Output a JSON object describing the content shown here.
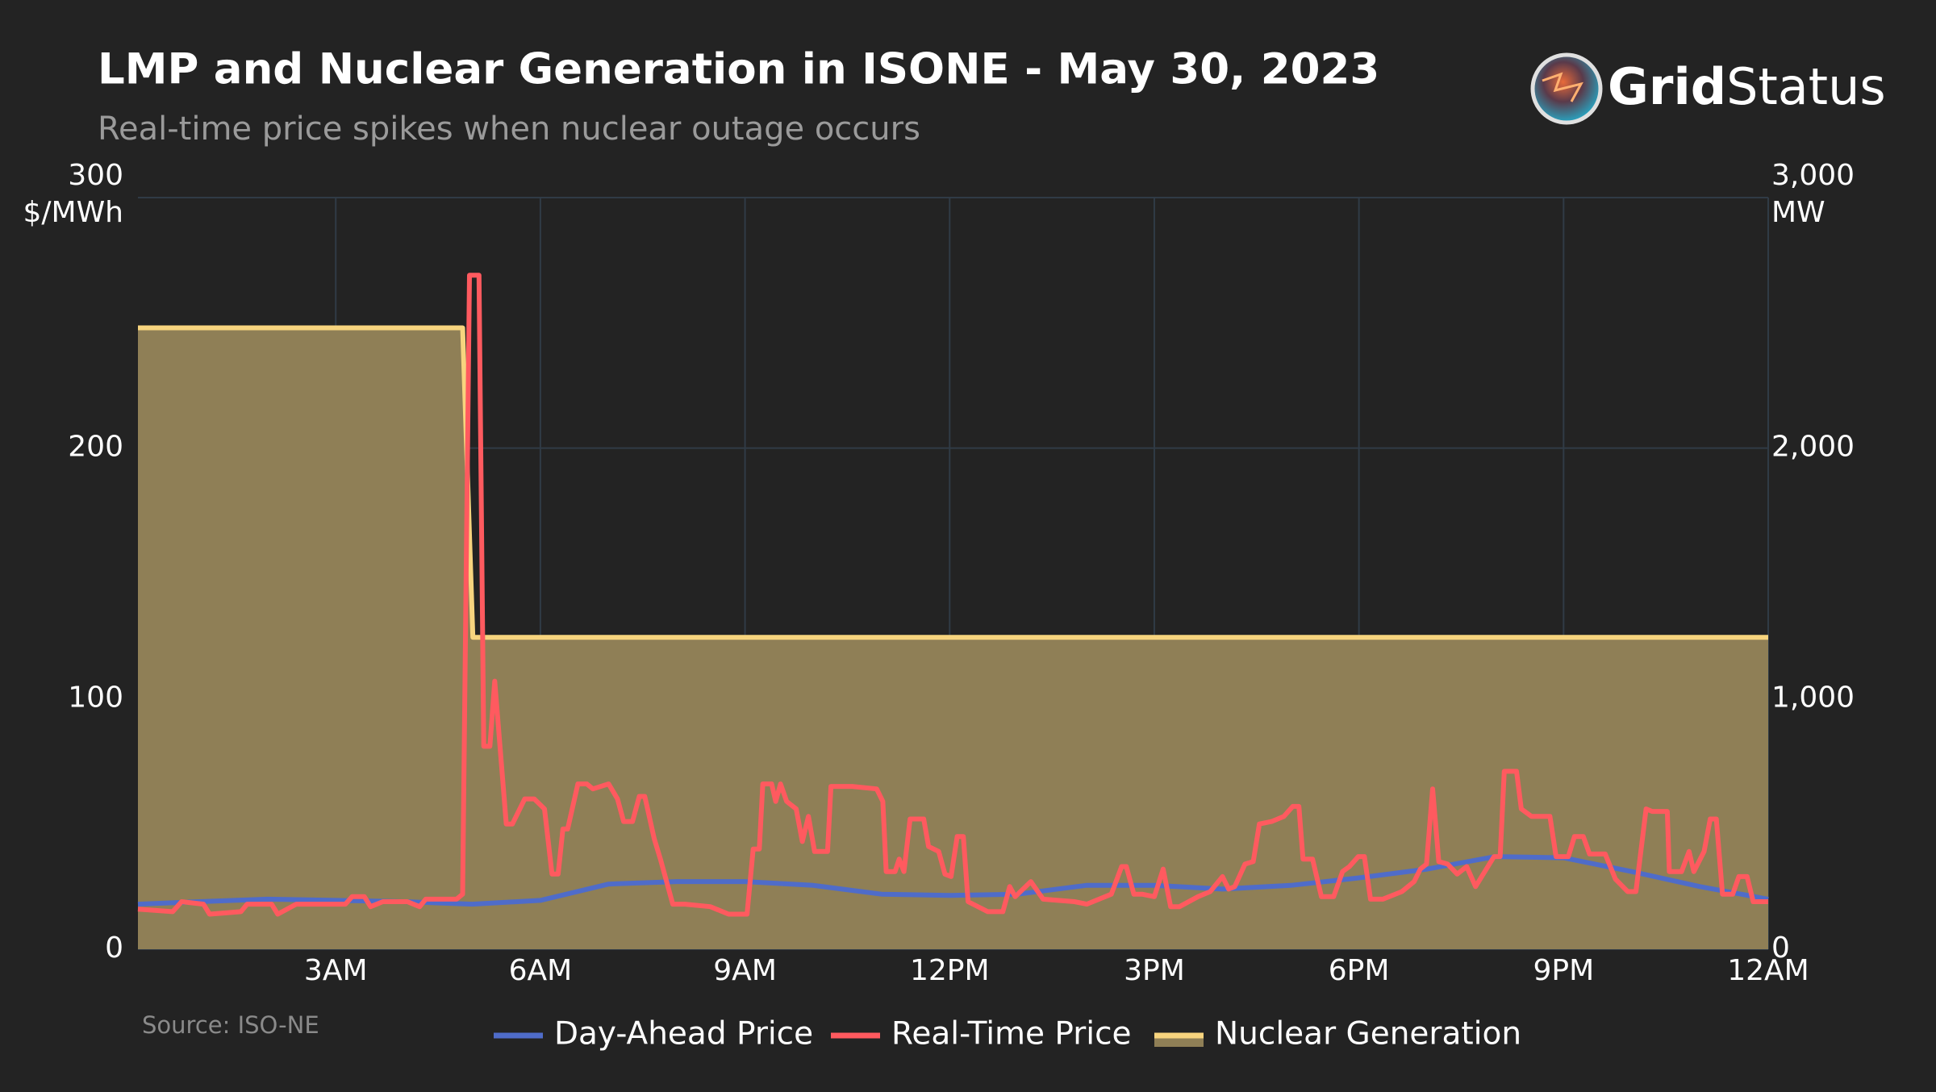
{
  "chart_data": {
    "type": "line",
    "title": "LMP and Nuclear Generation in ISONE - May 30, 2023",
    "subtitle": "Real-time price spikes when nuclear outage occurs",
    "source": "Source: ISO-NE",
    "branding": {
      "bold": "Grid",
      "regular": "Status"
    },
    "yaxis_title": "$/MWh",
    "y2axis_title": "MW",
    "xlim": [
      0.1,
      24
    ],
    "xticks": [
      {
        "value": 3,
        "label": "3AM"
      },
      {
        "value": 6,
        "label": "6AM"
      },
      {
        "value": 9,
        "label": "9AM"
      },
      {
        "value": 12,
        "label": "12PM"
      },
      {
        "value": 15,
        "label": "3PM"
      },
      {
        "value": 18,
        "label": "6PM"
      },
      {
        "value": 21,
        "label": "9PM"
      },
      {
        "value": 24,
        "label": "12AM"
      }
    ],
    "ylim": [
      0,
      300
    ],
    "yticks": [
      0,
      100,
      200,
      300
    ],
    "y2lim": [
      0,
      3000
    ],
    "y2ticks": [
      0,
      {
        "value": 1000,
        "label": "1,000"
      },
      {
        "value": 2000,
        "label": "2,000"
      },
      {
        "value": 3000,
        "label": "3,000"
      }
    ],
    "grid": true,
    "series": [
      {
        "name": "Day-Ahead Price",
        "color": "#4f6cc9",
        "x": [
          0.1,
          1,
          2,
          3,
          4,
          5,
          6,
          7,
          8,
          9,
          10,
          11,
          12,
          13,
          14,
          15,
          16,
          17,
          18,
          19,
          20,
          21,
          22,
          23,
          24
        ],
        "values": [
          18,
          19,
          20,
          19.5,
          19,
          18,
          19.5,
          26,
          27,
          27,
          25.5,
          22,
          21.5,
          22,
          25.5,
          25.5,
          24,
          25.5,
          28.5,
          32,
          37,
          36.5,
          31,
          25,
          20
        ]
      },
      {
        "name": "Real-Time Price",
        "color": "#ff5a5f",
        "x": [
          0.1,
          0.61,
          0.74,
          1.06,
          1.15,
          1.61,
          1.7,
          2.06,
          2.15,
          2.42,
          3.14,
          3.24,
          3.42,
          3.51,
          3.69,
          4.05,
          4.23,
          4.32,
          4.77,
          4.86,
          4.96,
          5.1,
          5.17,
          5.26,
          5.33,
          5.5,
          5.59,
          5.77,
          5.91,
          6.06,
          6.17,
          6.26,
          6.33,
          6.4,
          6.55,
          6.68,
          6.77,
          7.0,
          7.13,
          7.22,
          7.35,
          7.45,
          7.53,
          7.67,
          7.76,
          7.94,
          8.12,
          8.49,
          8.76,
          9.03,
          9.12,
          9.21,
          9.26,
          9.39,
          9.45,
          9.52,
          9.61,
          9.75,
          9.84,
          9.93,
          10.02,
          10.21,
          10.26,
          10.57,
          10.93,
          11.02,
          11.07,
          11.2,
          11.26,
          11.33,
          11.42,
          11.62,
          11.69,
          11.84,
          11.93,
          12.02,
          12.11,
          12.2,
          12.27,
          12.56,
          12.78,
          12.88,
          12.96,
          13.19,
          13.37,
          13.83,
          14.01,
          14.37,
          14.52,
          14.59,
          14.7,
          14.82,
          15.0,
          15.13,
          15.24,
          15.37,
          15.64,
          15.82,
          16.0,
          16.09,
          16.18,
          16.33,
          16.45,
          16.54,
          16.72,
          16.9,
          17.03,
          17.12,
          17.18,
          17.32,
          17.45,
          17.63,
          17.76,
          17.86,
          17.99,
          18.08,
          18.17,
          18.35,
          18.63,
          18.81,
          18.9,
          18.99,
          19.08,
          19.17,
          19.3,
          19.44,
          19.58,
          19.71,
          19.8,
          19.98,
          20.07,
          20.13,
          20.31,
          20.38,
          20.53,
          20.8,
          20.89,
          21.07,
          21.16,
          21.29,
          21.38,
          21.61,
          21.76,
          21.94,
          22.06,
          22.21,
          22.3,
          22.52,
          22.55,
          22.73,
          22.84,
          22.91,
          23.06,
          23.15,
          23.24,
          23.33,
          23.48,
          23.57,
          23.69,
          23.78,
          24.0
        ],
        "values": [
          16,
          15,
          19,
          18,
          14,
          15,
          18,
          18,
          14,
          18,
          18,
          21,
          21,
          17,
          19,
          19,
          17,
          20,
          20,
          22,
          269,
          269,
          81,
          81,
          107,
          50,
          50,
          60,
          60,
          56,
          30,
          30,
          48,
          48,
          66,
          66,
          64,
          66,
          60,
          51,
          51,
          61,
          61,
          44,
          36,
          18,
          18,
          17,
          14,
          14,
          40,
          40,
          66,
          66,
          59,
          66,
          59,
          56,
          43,
          53,
          39,
          39,
          65,
          65,
          64,
          59,
          31,
          31,
          36,
          31,
          52,
          52,
          41,
          39,
          30,
          29,
          45,
          45,
          19,
          15,
          15,
          25,
          21,
          27,
          20,
          19,
          18,
          22,
          33,
          33,
          22,
          22,
          21,
          32,
          17,
          17,
          21,
          23,
          29,
          24,
          25,
          34,
          35,
          50,
          51,
          53,
          57,
          57,
          36,
          36,
          21,
          21,
          31,
          33,
          37,
          37,
          20,
          20,
          23,
          27,
          32,
          34,
          64,
          35,
          34,
          30,
          33,
          25,
          29,
          37,
          37,
          71,
          71,
          56,
          53,
          53,
          37,
          37,
          45,
          45,
          38,
          38,
          28,
          23,
          23,
          56,
          55,
          55,
          31,
          31,
          39,
          31,
          39,
          52,
          52,
          22,
          22,
          29,
          29,
          19,
          19
        ]
      },
      {
        "name": "Nuclear Generation",
        "color": "#f7d47e",
        "fill": "#8f7f56",
        "axis": "y2",
        "x": [
          0.1,
          4.86,
          5.01,
          24
        ],
        "values": [
          2480,
          2480,
          1245,
          1245
        ]
      }
    ]
  }
}
